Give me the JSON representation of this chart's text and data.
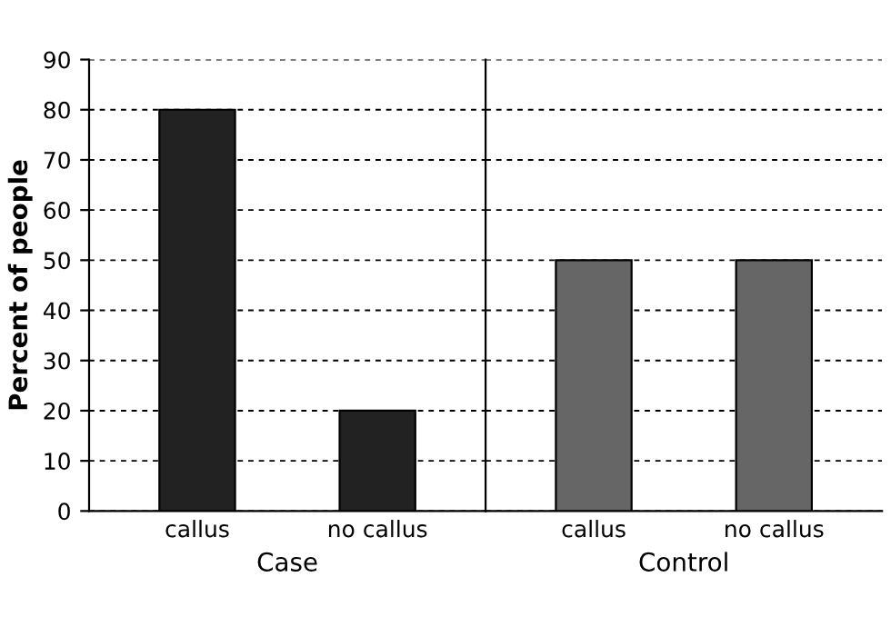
{
  "chart_data": [
    {
      "type": "bar",
      "ylabel": "Percent of people",
      "xlabel": "Case",
      "categories": [
        "callus",
        "no callus"
      ],
      "values": [
        80,
        20
      ],
      "colors": [
        "#222222",
        "#222222"
      ],
      "ylim": [
        0,
        90
      ],
      "yticks": [
        0,
        10,
        20,
        30,
        40,
        50,
        60,
        70,
        80,
        90
      ],
      "grid": "y"
    },
    {
      "type": "bar",
      "xlabel": "Control",
      "categories": [
        "callus",
        "no callus"
      ],
      "values": [
        50,
        50
      ],
      "colors": [
        "#666666",
        "#666666"
      ],
      "ylim": [
        0,
        90
      ],
      "yticks": [
        0,
        10,
        20,
        30,
        40,
        50,
        60,
        70,
        80,
        90
      ],
      "grid": "y",
      "tick_labels": "x"
    }
  ]
}
